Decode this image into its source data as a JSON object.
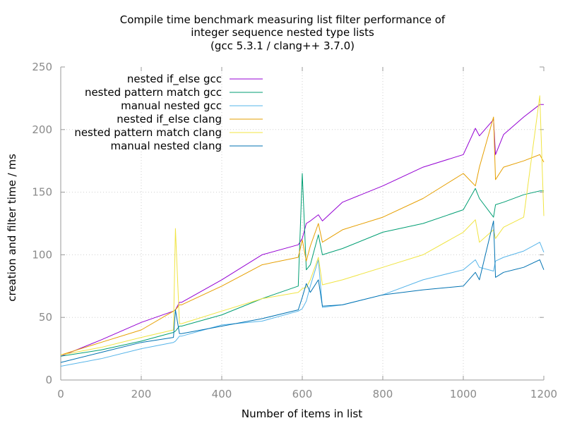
{
  "chart_data": {
    "type": "line",
    "title_lines": [
      "Compile time benchmark measuring list filter performance of",
      "integer sequence nested type lists",
      "(gcc 5.3.1 / clang++ 3.7.0)"
    ],
    "xlabel": "Number of items in list",
    "ylabel": "creation and filter time / ms",
    "xlim": [
      0,
      1200
    ],
    "ylim": [
      0,
      250
    ],
    "xticks": [
      0,
      200,
      400,
      600,
      800,
      1000,
      1200
    ],
    "yticks": [
      0,
      50,
      100,
      150,
      200,
      250
    ],
    "grid": true,
    "legend_position": "top-left",
    "x": [
      0,
      100,
      200,
      280,
      285,
      295,
      300,
      400,
      500,
      590,
      600,
      610,
      620,
      640,
      650,
      700,
      800,
      900,
      1000,
      1030,
      1040,
      1075,
      1080,
      1100,
      1150,
      1190,
      1200
    ],
    "series": [
      {
        "name": "nested if_else gcc",
        "color": "#9400d3",
        "values": [
          19,
          32,
          46,
          55,
          56,
          62,
          62,
          80,
          100,
          108,
          113,
          125,
          127,
          132,
          127,
          142,
          155,
          170,
          180,
          201,
          195,
          208,
          180,
          196,
          210,
          220,
          220
        ]
      },
      {
        "name": "nested pattern match gcc",
        "color": "#009e73",
        "values": [
          19,
          24,
          31,
          38,
          39,
          43,
          43,
          52,
          65,
          75,
          165,
          88,
          92,
          116,
          100,
          105,
          118,
          125,
          136,
          153,
          145,
          130,
          140,
          142,
          148,
          151,
          151
        ]
      },
      {
        "name": "manual nested gcc",
        "color": "#56b4e9",
        "values": [
          11,
          17,
          25,
          30,
          31,
          35,
          35,
          44,
          47,
          55,
          57,
          63,
          75,
          96,
          58,
          60,
          68,
          80,
          88,
          96,
          90,
          87,
          95,
          98,
          103,
          110,
          102
        ]
      },
      {
        "name": "nested if_else clang",
        "color": "#e69f00",
        "values": [
          20,
          30,
          40,
          55,
          56,
          60,
          60,
          75,
          92,
          98,
          112,
          95,
          107,
          125,
          110,
          120,
          130,
          145,
          165,
          155,
          170,
          210,
          160,
          170,
          175,
          180,
          174
        ]
      },
      {
        "name": "nested pattern match clang",
        "color": "#f0e442",
        "values": [
          20,
          26,
          34,
          40,
          121,
          45,
          45,
          55,
          65,
          70,
          73,
          74,
          80,
          98,
          76,
          80,
          90,
          100,
          118,
          128,
          110,
          120,
          113,
          122,
          130,
          227,
          131
        ]
      },
      {
        "name": "manual nested clang",
        "color": "#0072b2",
        "values": [
          14,
          22,
          30,
          34,
          56,
          37,
          37,
          43,
          49,
          56,
          66,
          77,
          70,
          80,
          59,
          60,
          68,
          72,
          75,
          86,
          80,
          127,
          82,
          86,
          90,
          96,
          88
        ]
      }
    ]
  }
}
